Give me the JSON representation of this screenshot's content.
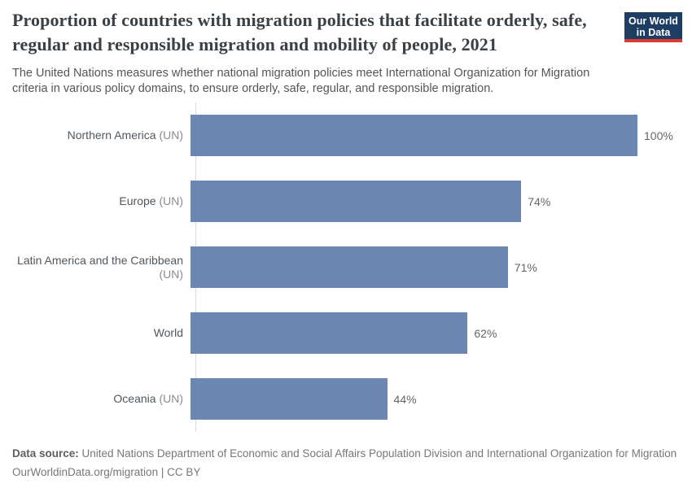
{
  "header": {
    "title": "Proportion of countries with migration policies that facilitate orderly, safe, regular and responsible migration and mobility of people, 2021",
    "subtitle": "The United Nations measures whether national migration policies meet International Organization for Migration criteria in various policy domains, to ensure orderly, safe, regular, and responsible migration.",
    "logo": {
      "line1": "Our World",
      "line2": "in Data"
    }
  },
  "chart_data": {
    "type": "bar",
    "orientation": "horizontal",
    "title": "Proportion of countries with migration policies that facilitate orderly, safe, regular and responsible migration and mobility of people, 2021",
    "unit": "%",
    "xlim": [
      0,
      100
    ],
    "grid": false,
    "legend_position": "none",
    "categories": [
      "Northern America (UN)",
      "Europe (UN)",
      "Latin America and the Caribbean (UN)",
      "World",
      "Oceania (UN)"
    ],
    "values": [
      100,
      74,
      71,
      62,
      44
    ],
    "rows": [
      {
        "entity": "Northern America",
        "qualifier": "(UN)",
        "value": 100,
        "value_label": "100%"
      },
      {
        "entity": "Europe",
        "qualifier": "(UN)",
        "value": 74,
        "value_label": "74%"
      },
      {
        "entity": "Latin America and the Caribbean",
        "qualifier": "(UN)",
        "value": 71,
        "value_label": "71%"
      },
      {
        "entity": "World",
        "qualifier": "",
        "value": 62,
        "value_label": "62%"
      },
      {
        "entity": "Oceania",
        "qualifier": "(UN)",
        "value": 44,
        "value_label": "44%"
      }
    ]
  },
  "colors": {
    "bar": "#6c87b2",
    "axis": "#dcdcdc",
    "logo_bg": "#1d3d63",
    "logo_accent": "#d93a34"
  },
  "footer": {
    "source_label": "Data source:",
    "source_text": "United Nations Department of Economic and Social Affairs Population Division and International Organization for Migration",
    "citation": "OurWorldinData.org/migration | CC BY"
  }
}
